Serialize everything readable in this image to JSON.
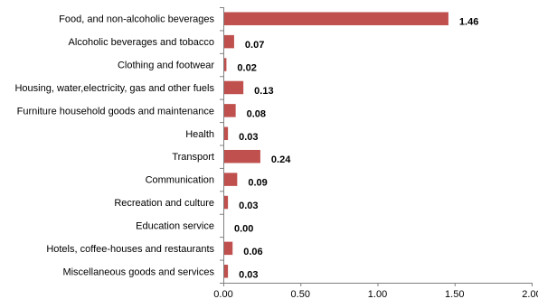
{
  "chart_data": {
    "type": "bar",
    "orientation": "horizontal",
    "categories": [
      "Food, and non-alcoholic beverages",
      "Alcoholic beverages and tobacco",
      "Clothing and footwear",
      "Housing, water,electricity, gas and other fuels",
      "Furniture  household goods and maintenance",
      "Health",
      "Transport",
      "Communication",
      "Recreation  and culture",
      "Education service",
      "Hotels, coffee-houses and restaurants",
      "Miscellaneous goods and services"
    ],
    "values": [
      1.46,
      0.07,
      0.02,
      0.13,
      0.08,
      0.03,
      0.24,
      0.09,
      0.03,
      0.0,
      0.06,
      0.03
    ],
    "value_labels": [
      "1.46",
      "0.07",
      "0.02",
      "0.13",
      "0.08",
      "0.03",
      "0.24",
      "0.09",
      "0.03",
      "0.00",
      "0.06",
      "0.03"
    ],
    "xlim": [
      0,
      2
    ],
    "x_ticks": [
      0,
      0.5,
      1.0,
      1.5,
      2.0
    ],
    "x_tick_labels": [
      "0.00",
      "0.50",
      "1.00",
      "1.50",
      "2.00"
    ],
    "title": "",
    "xlabel": "",
    "ylabel": "",
    "bar_color": "#c0504d",
    "grid": false,
    "legend": "none"
  }
}
